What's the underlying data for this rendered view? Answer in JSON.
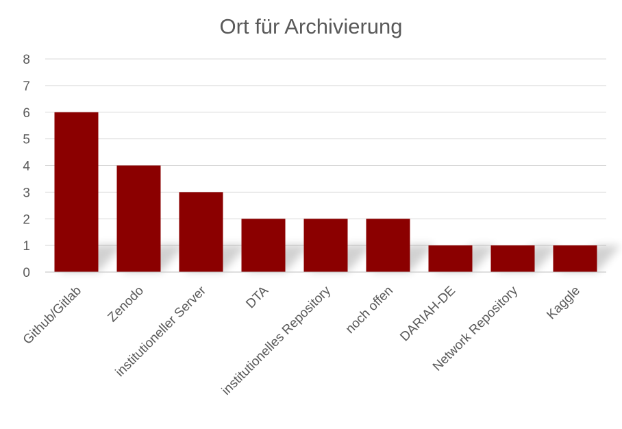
{
  "chart_data": {
    "type": "bar",
    "title": "Ort für Archivierung",
    "xlabel": "",
    "ylabel": "",
    "categories": [
      "Github/Gitlab",
      "Zenodo",
      "institutioneller Server",
      "DTA",
      "institutionelles Repository",
      "noch offen",
      "DARIAH-DE",
      "Network Repository",
      "Kaggle"
    ],
    "values": [
      6,
      4,
      3,
      2,
      2,
      2,
      1,
      1,
      1
    ],
    "ylim": [
      0,
      8
    ],
    "yticks": [
      "0",
      "1",
      "2",
      "3",
      "4",
      "5",
      "6",
      "7",
      "8"
    ],
    "grid": true,
    "legend": "none",
    "bar_color": "#8b0000"
  }
}
